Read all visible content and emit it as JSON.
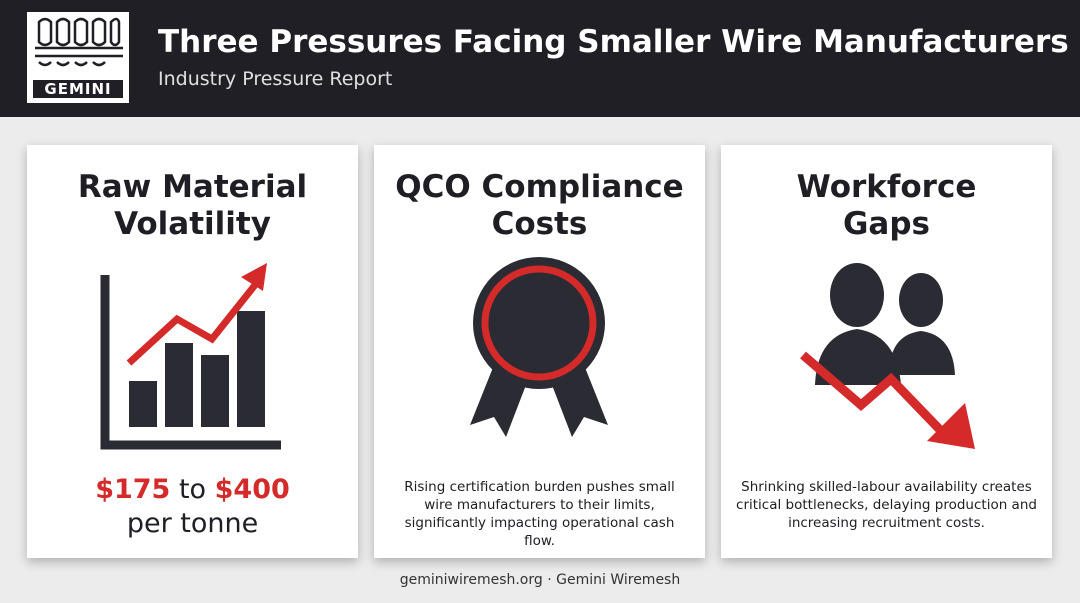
{
  "header": {
    "logo": "GEMINI",
    "title": "Three Pressures Facing Smaller Wire Manufacturers",
    "subtitle": "Industry Pressure Report"
  },
  "cards": [
    {
      "title_line1": "Raw Material",
      "title_line2": "Volatility",
      "low": "$175",
      "joiner": "to",
      "high": "$400",
      "unit": "per tonne"
    },
    {
      "title_line1": "QCO Compliance",
      "title_line2": "Costs",
      "description": "Rising certification burden pushes small wire manufacturers to their limits, significantly impacting operational cash flow."
    },
    {
      "title_line1": "Workforce",
      "title_line2": "Gaps",
      "description": "Shrinking skilled-labour availability creates critical bottlenecks, delaying production and increasing recruitment costs."
    }
  ],
  "footer": "geminiwiremesh.org · Gemini Wiremesh"
}
